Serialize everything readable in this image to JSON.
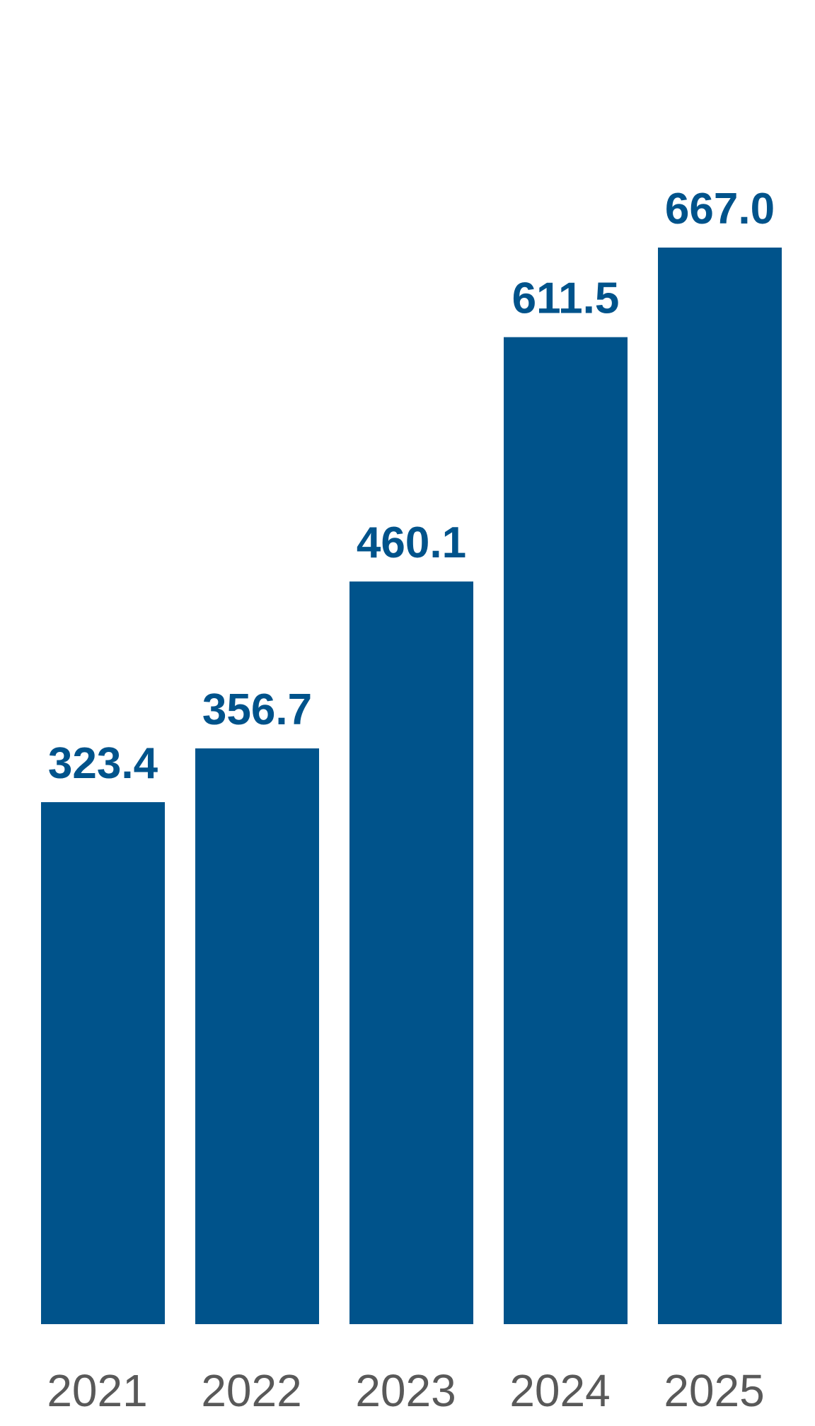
{
  "chart_data": {
    "type": "bar",
    "categories": [
      "2021",
      "2022",
      "2023",
      "2024",
      "2025"
    ],
    "values": [
      323.4,
      356.7,
      460.1,
      611.5,
      667.0
    ],
    "value_labels": [
      "323.4",
      "356.7",
      "460.1",
      "611.5",
      "667.0"
    ],
    "title": "",
    "xlabel": "",
    "ylabel": "",
    "ylim": [
      0,
      667.0
    ],
    "grid": false,
    "legend": "none",
    "bar_color": "#00538B",
    "value_label_color": "#00538B",
    "tick_label_color": "#595959"
  }
}
